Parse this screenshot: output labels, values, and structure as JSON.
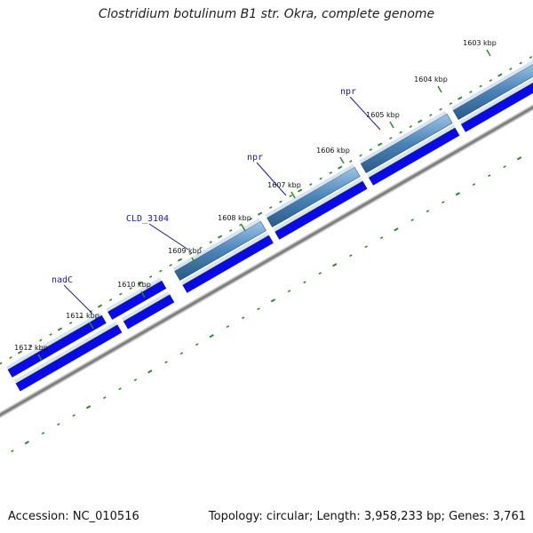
{
  "title": "Clostridium botulinum B1 str. Okra, complete genome",
  "footer": {
    "accession": "Accession: NC_010516",
    "topology": "Topology: circular; Length: 3,958,233 bp; Genes: 3,761"
  },
  "colors": {
    "forward_gene": "#4a84b8",
    "reverse_gene": "#0a0ae6",
    "backbone": "#808080",
    "tick": "#2a8a2a",
    "label": "#1a1aa6"
  },
  "ticks": [
    "1603 kbp",
    "1604 kbp",
    "1605 kbp",
    "1606 kbp",
    "1607 kbp",
    "1608 kbp",
    "1609 kbp",
    "1610 kbp",
    "1611 kbp",
    "1612 kbp"
  ],
  "gene_labels": [
    "npr",
    "npr",
    "CLD_3104",
    "nadC"
  ]
}
